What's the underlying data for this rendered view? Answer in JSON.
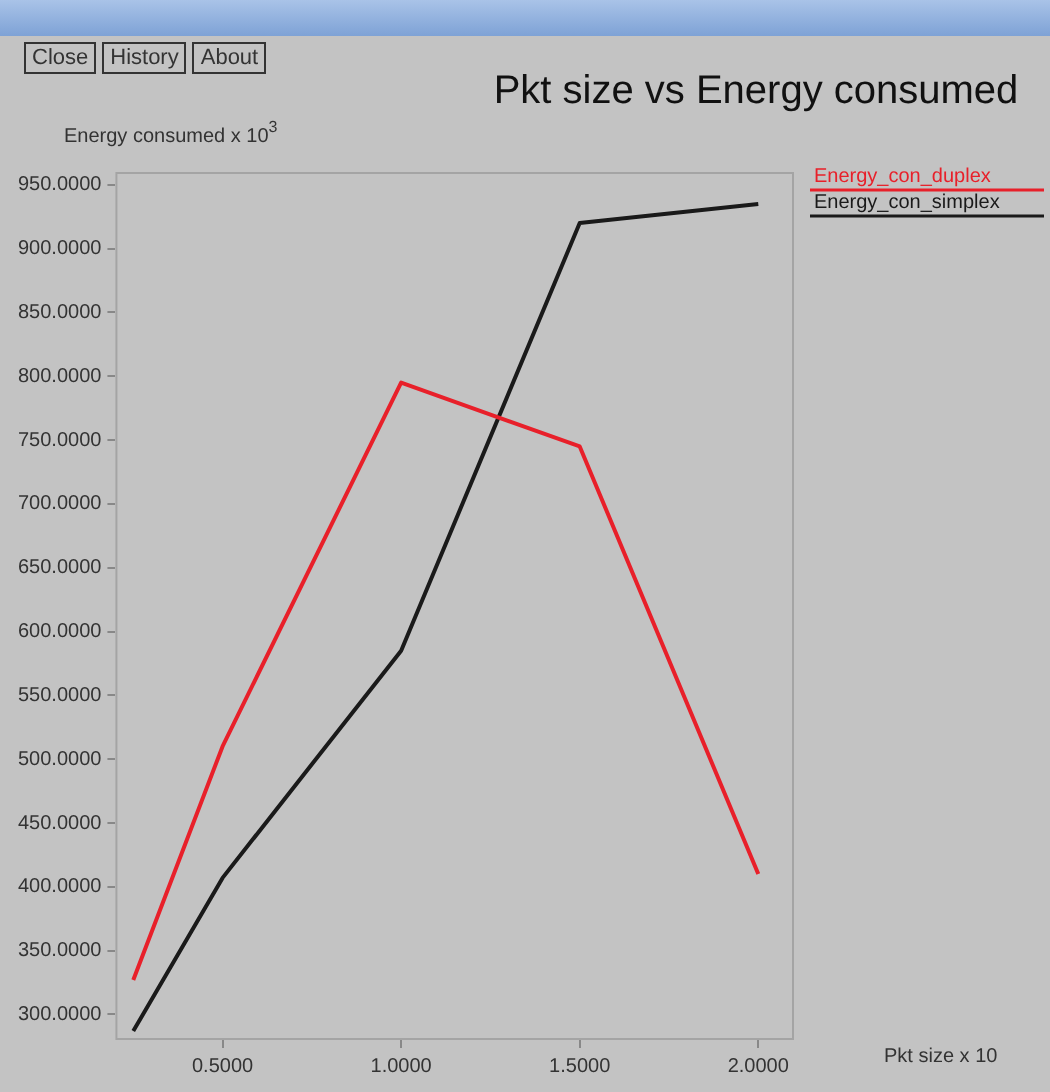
{
  "chart_data": {
    "type": "line",
    "title": "Pkt size vs Energy consumed",
    "xlabel": "Pkt size x 10",
    "ylabel": "Energy consumed x 10$^{3}$",
    "annotations": [
      "Close",
      "History",
      "About"
    ],
    "x": [
      0.25,
      0.5,
      1.0,
      1.5,
      2.0
    ],
    "series": [
      {
        "name": "Energy_con_duplex",
        "color": "#e8202a",
        "values": [
          327,
          510,
          795,
          745,
          410
        ]
      },
      {
        "name": "Energy_con_simplex",
        "color": "#1a1a1a",
        "values": [
          287,
          407,
          585,
          920,
          935
        ]
      }
    ],
    "xlim": [
      0.2,
      2.1
    ],
    "xticks": [
      {
        "value": 0.5,
        "label": "0.5000"
      },
      {
        "value": 1,
        "label": "1.0000"
      },
      {
        "value": 1.5,
        "label": "1.5000"
      },
      {
        "value": 2,
        "label": "2.0000"
      }
    ],
    "ylim": [
      280,
      960
    ],
    "yticks": [
      {
        "value": 300,
        "label": "300.0000"
      },
      {
        "value": 350,
        "label": "350.0000"
      },
      {
        "value": 400,
        "label": "400.0000"
      },
      {
        "value": 450,
        "label": "450.0000"
      },
      {
        "value": 500,
        "label": "500.0000"
      },
      {
        "value": 550,
        "label": "550.0000"
      },
      {
        "value": 600,
        "label": "600.0000"
      },
      {
        "value": 650,
        "label": "650.0000"
      },
      {
        "value": 700,
        "label": "700.0000"
      },
      {
        "value": 750,
        "label": "750.0000"
      },
      {
        "value": 800,
        "label": "800.0000"
      },
      {
        "value": 850,
        "label": "850.0000"
      },
      {
        "value": 900,
        "label": "900.0000"
      },
      {
        "value": 950,
        "label": "950.0000"
      }
    ],
    "legend": "top right",
    "marker": "none",
    "line_style": "solid",
    "grid": false
  }
}
